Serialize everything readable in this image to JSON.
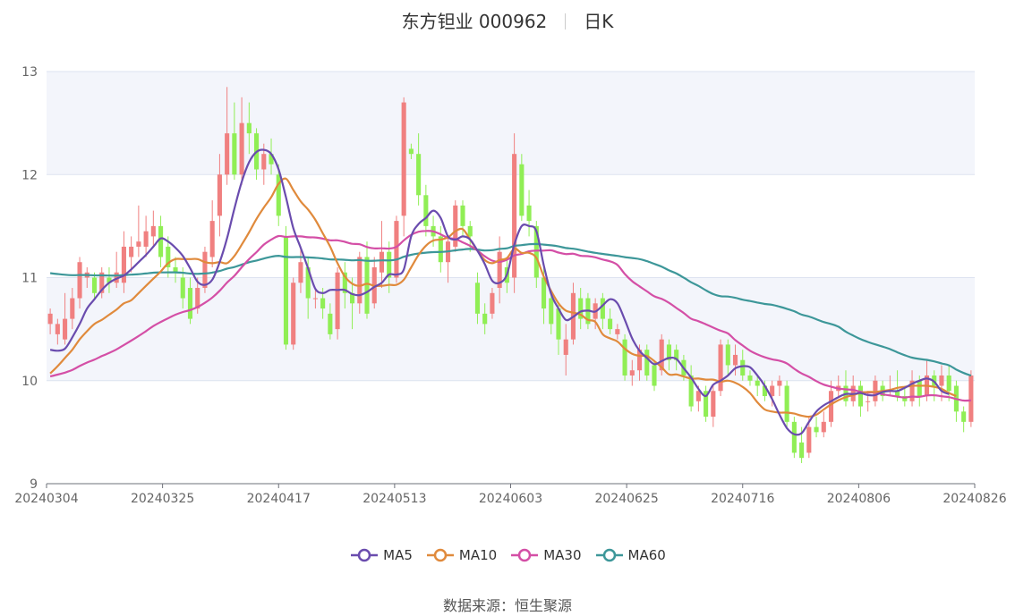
{
  "header": {
    "stock_title": "东方钽业 000962",
    "period": "日K"
  },
  "footer": {
    "source_label": "数据来源：",
    "source_name": "恒生聚源"
  },
  "colors": {
    "up": "#f08080",
    "down": "#90ee55",
    "MA5": "#6a4cae",
    "MA10": "#e08a3c",
    "MA30": "#d44fa6",
    "MA60": "#3d9799",
    "band": "#f3f5fb",
    "grid": "#dde3f0",
    "axis": "#666666"
  },
  "chart_data": {
    "type": "candlestick",
    "ylim": [
      9,
      13
    ],
    "yticks": [
      "9",
      "10",
      "11",
      "12",
      "13"
    ],
    "xticks": [
      "20240304",
      "20240325",
      "20240417",
      "20240513",
      "20240603",
      "20240625",
      "20240716",
      "20240806",
      "20240826"
    ],
    "legend": [
      "MA5",
      "MA10",
      "MA30",
      "MA60"
    ],
    "candles_ohlc": [
      [
        10.55,
        10.65,
        10.45,
        10.7
      ],
      [
        10.45,
        10.55,
        10.35,
        10.6
      ],
      [
        10.4,
        10.6,
        10.35,
        10.85
      ],
      [
        10.6,
        10.8,
        10.5,
        10.9
      ],
      [
        10.8,
        11.15,
        10.7,
        11.2
      ],
      [
        11.0,
        11.05,
        10.9,
        11.1
      ],
      [
        11.0,
        10.85,
        10.8,
        11.05
      ],
      [
        10.85,
        11.05,
        10.8,
        11.1
      ],
      [
        11.0,
        10.95,
        10.85,
        11.1
      ],
      [
        10.95,
        11.05,
        10.9,
        11.25
      ],
      [
        10.95,
        11.3,
        10.85,
        11.45
      ],
      [
        11.2,
        11.3,
        11.05,
        11.4
      ],
      [
        11.3,
        11.35,
        11.2,
        11.7
      ],
      [
        11.3,
        11.45,
        11.2,
        11.6
      ],
      [
        11.4,
        11.5,
        11.3,
        11.65
      ],
      [
        11.5,
        11.2,
        11.1,
        11.6
      ],
      [
        11.3,
        11.1,
        11.0,
        11.4
      ],
      [
        11.1,
        11.05,
        10.95,
        11.2
      ],
      [
        11.0,
        10.8,
        10.7,
        11.1
      ],
      [
        10.9,
        10.6,
        10.55,
        11.0
      ],
      [
        10.7,
        10.9,
        10.65,
        11.0
      ],
      [
        10.9,
        11.25,
        10.85,
        11.3
      ],
      [
        11.2,
        11.55,
        11.1,
        11.75
      ],
      [
        11.6,
        12.0,
        11.4,
        12.2
      ],
      [
        12.0,
        12.4,
        11.9,
        12.85
      ],
      [
        12.4,
        12.0,
        11.95,
        12.7
      ],
      [
        12.0,
        12.5,
        11.9,
        12.75
      ],
      [
        12.5,
        12.4,
        12.2,
        12.7
      ],
      [
        12.4,
        12.05,
        11.95,
        12.45
      ],
      [
        12.05,
        12.2,
        11.9,
        12.3
      ],
      [
        12.2,
        12.1,
        12.0,
        12.35
      ],
      [
        12.0,
        11.6,
        11.5,
        12.1
      ],
      [
        11.4,
        10.35,
        10.3,
        11.5
      ],
      [
        10.35,
        10.95,
        10.3,
        11.0
      ],
      [
        10.95,
        11.15,
        10.85,
        11.3
      ],
      [
        11.1,
        10.8,
        10.6,
        11.2
      ],
      [
        10.8,
        10.8,
        10.7,
        10.9
      ],
      [
        10.8,
        10.7,
        10.6,
        10.9
      ],
      [
        10.65,
        10.45,
        10.4,
        10.75
      ],
      [
        10.5,
        11.05,
        10.4,
        11.1
      ],
      [
        11.05,
        10.85,
        10.7,
        11.15
      ],
      [
        10.85,
        10.75,
        10.5,
        11.0
      ],
      [
        10.75,
        11.2,
        10.65,
        11.25
      ],
      [
        11.2,
        10.65,
        10.6,
        11.35
      ],
      [
        10.75,
        11.1,
        10.7,
        11.2
      ],
      [
        11.05,
        11.25,
        10.9,
        11.55
      ],
      [
        11.25,
        11.0,
        10.85,
        11.35
      ],
      [
        11.0,
        11.55,
        10.95,
        11.6
      ],
      [
        11.6,
        12.7,
        11.4,
        12.75
      ],
      [
        12.25,
        12.2,
        12.15,
        12.3
      ],
      [
        12.2,
        11.8,
        11.7,
        12.4
      ],
      [
        11.8,
        11.5,
        11.4,
        11.9
      ],
      [
        11.5,
        11.4,
        11.3,
        11.6
      ],
      [
        11.4,
        11.15,
        11.05,
        11.5
      ],
      [
        11.15,
        11.35,
        10.95,
        11.4
      ],
      [
        11.3,
        11.7,
        11.25,
        11.75
      ],
      [
        11.7,
        11.5,
        11.4,
        11.75
      ],
      [
        11.5,
        11.4,
        11.25,
        11.55
      ],
      [
        10.95,
        10.65,
        10.55,
        11.05
      ],
      [
        10.65,
        10.55,
        10.45,
        10.75
      ],
      [
        10.65,
        10.85,
        10.6,
        10.9
      ],
      [
        10.9,
        11.25,
        10.75,
        11.4
      ],
      [
        11.1,
        10.95,
        10.85,
        11.2
      ],
      [
        11.0,
        12.2,
        10.85,
        12.4
      ],
      [
        12.1,
        11.6,
        11.55,
        12.2
      ],
      [
        11.7,
        11.55,
        11.4,
        11.85
      ],
      [
        11.5,
        11.0,
        10.9,
        11.55
      ],
      [
        11.0,
        10.7,
        10.55,
        11.1
      ],
      [
        10.8,
        10.55,
        10.45,
        10.85
      ],
      [
        10.7,
        10.4,
        10.25,
        10.75
      ],
      [
        10.25,
        10.4,
        10.05,
        10.55
      ],
      [
        10.4,
        10.85,
        10.35,
        10.95
      ],
      [
        10.8,
        10.6,
        10.5,
        10.9
      ],
      [
        10.8,
        10.55,
        10.5,
        10.85
      ],
      [
        10.6,
        10.75,
        10.5,
        10.8
      ],
      [
        10.8,
        10.6,
        10.5,
        10.85
      ],
      [
        10.6,
        10.5,
        10.45,
        10.7
      ],
      [
        10.45,
        10.5,
        10.4,
        10.55
      ],
      [
        10.4,
        10.05,
        10.0,
        10.45
      ],
      [
        10.05,
        10.1,
        9.95,
        10.2
      ],
      [
        10.1,
        10.3,
        10.0,
        10.35
      ],
      [
        10.3,
        10.05,
        10.0,
        10.35
      ],
      [
        10.15,
        9.95,
        9.9,
        10.2
      ],
      [
        10.1,
        10.4,
        10.05,
        10.45
      ],
      [
        10.35,
        10.2,
        10.1,
        10.4
      ],
      [
        10.3,
        10.2,
        10.1,
        10.35
      ],
      [
        10.2,
        10.05,
        10.0,
        10.25
      ],
      [
        10.05,
        9.75,
        9.7,
        10.15
      ],
      [
        9.8,
        9.9,
        9.7,
        9.95
      ],
      [
        9.9,
        9.65,
        9.6,
        9.95
      ],
      [
        9.65,
        9.9,
        9.55,
        9.95
      ],
      [
        9.9,
        10.35,
        9.85,
        10.4
      ],
      [
        10.35,
        10.15,
        10.05,
        10.4
      ],
      [
        10.15,
        10.25,
        10.05,
        10.35
      ],
      [
        10.2,
        10.05,
        10.0,
        10.3
      ],
      [
        10.05,
        10.0,
        9.95,
        10.1
      ],
      [
        10.0,
        9.95,
        9.85,
        10.05
      ],
      [
        9.95,
        9.85,
        9.8,
        10.0
      ],
      [
        9.85,
        9.95,
        9.75,
        10.0
      ],
      [
        9.95,
        10.0,
        9.85,
        10.05
      ],
      [
        9.95,
        9.6,
        9.55,
        10.0
      ],
      [
        9.6,
        9.3,
        9.25,
        9.65
      ],
      [
        9.4,
        9.25,
        9.2,
        9.55
      ],
      [
        9.3,
        9.55,
        9.25,
        9.65
      ],
      [
        9.55,
        9.5,
        9.45,
        9.65
      ],
      [
        9.5,
        9.6,
        9.45,
        9.7
      ],
      [
        9.6,
        9.9,
        9.55,
        10.0
      ],
      [
        9.9,
        9.95,
        9.85,
        10.05
      ],
      [
        9.95,
        9.8,
        9.75,
        10.1
      ],
      [
        9.8,
        9.95,
        9.75,
        10.05
      ],
      [
        9.95,
        9.75,
        9.65,
        10.0
      ],
      [
        9.8,
        9.8,
        9.7,
        9.9
      ],
      [
        9.8,
        10.0,
        9.75,
        10.05
      ],
      [
        9.95,
        9.85,
        9.8,
        10.0
      ],
      [
        9.9,
        9.9,
        9.85,
        10.05
      ],
      [
        9.9,
        9.85,
        9.8,
        10.1
      ],
      [
        9.85,
        9.8,
        9.75,
        9.95
      ],
      [
        9.8,
        10.0,
        9.75,
        10.1
      ],
      [
        10.0,
        9.85,
        9.75,
        10.05
      ],
      [
        9.85,
        10.05,
        9.8,
        10.2
      ],
      [
        10.05,
        9.95,
        9.8,
        10.1
      ],
      [
        9.95,
        10.05,
        9.8,
        10.15
      ],
      [
        10.05,
        9.9,
        9.8,
        10.15
      ],
      [
        9.95,
        9.7,
        9.6,
        10.0
      ],
      [
        9.7,
        9.6,
        9.5,
        9.75
      ],
      [
        9.6,
        10.05,
        9.55,
        10.1
      ]
    ],
    "ma": {
      "MA5": [
        10.3,
        10.29,
        10.31,
        10.42,
        10.55,
        10.7,
        10.79,
        10.88,
        10.95,
        10.99,
        11.02,
        11.08,
        11.15,
        11.22,
        11.3,
        11.38,
        11.35,
        11.29,
        11.21,
        11.09,
        10.96,
        10.93,
        10.98,
        11.15,
        11.38,
        11.67,
        11.93,
        12.12,
        12.22,
        12.24,
        12.2,
        12.05,
        11.78,
        11.48,
        11.29,
        11.09,
        10.89,
        10.85,
        10.88,
        10.88,
        10.88,
        10.84,
        10.83,
        10.86,
        10.91,
        10.95,
        11.03,
        11.03,
        11.08,
        11.4,
        11.52,
        11.58,
        11.65,
        11.58,
        11.4,
        11.37,
        11.4,
        11.37,
        11.26,
        11.13,
        10.97,
        10.95,
        11.03,
        11.32,
        11.5,
        11.5,
        11.45,
        11.12,
        10.84,
        10.7,
        10.59,
        10.62,
        10.67,
        10.68,
        10.67,
        10.73,
        10.79,
        10.75,
        10.59,
        10.41,
        10.29,
        10.22,
        10.16,
        10.19,
        10.22,
        10.21,
        10.12,
        10.03,
        9.92,
        9.85,
        9.96,
        10.0,
        10.05,
        10.12,
        10.14,
        10.13,
        10.05,
        9.95,
        9.82,
        9.67,
        9.54,
        9.48,
        9.49,
        9.6,
        9.7,
        9.76,
        9.8,
        9.84,
        9.87,
        9.87,
        9.88,
        9.86,
        9.86,
        9.89,
        9.9,
        9.9,
        9.93,
        9.97,
        10.0,
        10.02,
        9.99,
        9.9,
        9.87
      ],
      "MA10": [
        10.07,
        10.14,
        10.22,
        10.3,
        10.4,
        10.48,
        10.55,
        10.59,
        10.64,
        10.69,
        10.75,
        10.78,
        10.85,
        10.92,
        10.99,
        11.06,
        11.14,
        11.18,
        11.18,
        11.18,
        11.18,
        11.15,
        11.14,
        11.15,
        11.14,
        11.21,
        11.32,
        11.44,
        11.57,
        11.68,
        11.78,
        11.91,
        11.96,
        11.85,
        11.74,
        11.66,
        11.56,
        11.43,
        11.3,
        11.14,
        11.01,
        10.94,
        10.92,
        10.94,
        10.92,
        10.92,
        10.93,
        10.93,
        10.98,
        11.1,
        11.22,
        11.31,
        11.36,
        11.37,
        11.39,
        11.45,
        11.47,
        11.37,
        11.26,
        11.17,
        11.14,
        11.17,
        11.19,
        11.28,
        11.24,
        11.24,
        11.19,
        11.01,
        10.87,
        10.75,
        10.68,
        10.66,
        10.64,
        10.59,
        10.57,
        10.45,
        10.41,
        10.38,
        10.31,
        10.26,
        10.24,
        10.24,
        10.19,
        10.13,
        10.06,
        10.06,
        10.04,
        10.02,
        10.02,
        10.01,
        10.01,
        9.99,
        10.0,
        9.98,
        9.94,
        9.88,
        9.79,
        9.72,
        9.7,
        9.69,
        9.69,
        9.68,
        9.66,
        9.65,
        9.67,
        9.72,
        9.77,
        9.81,
        9.84,
        9.86,
        9.88,
        9.89,
        9.89,
        9.9,
        9.91,
        9.93,
        9.94,
        9.95,
        9.95,
        9.95,
        9.94,
        9.92,
        9.88,
        9.85
      ]
    }
  }
}
